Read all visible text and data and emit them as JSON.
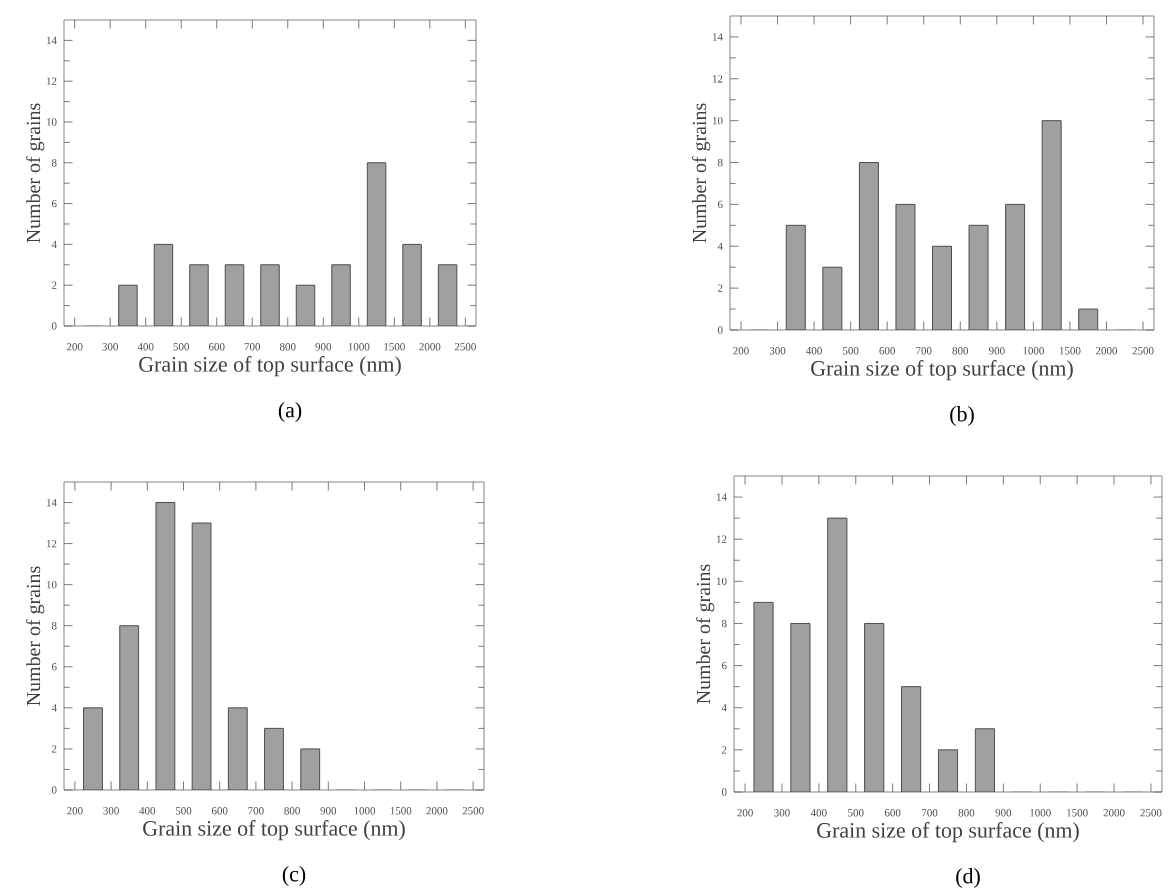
{
  "chart_data": [
    {
      "type": "bar",
      "xlabel": "Grain size of top surface (nm)",
      "ylabel": "Number of grains",
      "categories": [
        "200",
        "300",
        "400",
        "500",
        "600",
        "700",
        "800",
        "900",
        "1000",
        "1500",
        "2000",
        "2500"
      ],
      "values": [
        0,
        2,
        4,
        3,
        3,
        3,
        2,
        3,
        8,
        4,
        3,
        null
      ],
      "color": "#a0a0a0",
      "ylim": [
        0,
        15
      ],
      "yticks": [
        0,
        2,
        4,
        6,
        8,
        10,
        12,
        14
      ],
      "annotations": [
        "(a)"
      ]
    },
    {
      "type": "bar",
      "xlabel": "Grain size of top surface (nm)",
      "ylabel": "Number of grains",
      "categories": [
        "200",
        "300",
        "400",
        "500",
        "600",
        "700",
        "800",
        "900",
        "1000",
        "1500",
        "2000",
        "2500"
      ],
      "values": [
        0,
        5,
        3,
        8,
        6,
        4,
        5,
        6,
        10,
        1,
        0,
        null
      ],
      "color": "#a0a0a0",
      "ylim": [
        0,
        15
      ],
      "yticks": [
        0,
        2,
        4,
        6,
        8,
        10,
        12,
        14
      ],
      "annotations": [
        "(b)"
      ]
    },
    {
      "type": "bar",
      "xlabel": "Grain size of top surface (nm)",
      "ylabel": "Number of grains",
      "categories": [
        "200",
        "300",
        "400",
        "500",
        "600",
        "700",
        "800",
        "900",
        "1000",
        "1500",
        "2000",
        "2500"
      ],
      "values": [
        4,
        8,
        14,
        13,
        4,
        3,
        2,
        0,
        0,
        0,
        0,
        null
      ],
      "color": "#a0a0a0",
      "ylim": [
        0,
        15
      ],
      "yticks": [
        0,
        2,
        4,
        6,
        8,
        10,
        12,
        14
      ],
      "annotations": [
        "(c)"
      ]
    },
    {
      "type": "bar",
      "xlabel": "Grain size of top surface (nm)",
      "ylabel": "Number of grains",
      "categories": [
        "200",
        "300",
        "400",
        "500",
        "600",
        "700",
        "800",
        "900",
        "1000",
        "1500",
        "2000",
        "2500"
      ],
      "values": [
        9,
        8,
        13,
        8,
        5,
        2,
        3,
        0,
        0,
        0,
        0,
        null
      ],
      "color": "#a0a0a0",
      "ylim": [
        0,
        15
      ],
      "yticks": [
        0,
        2,
        4,
        6,
        8,
        10,
        12,
        14
      ],
      "annotations": [
        "(d)"
      ]
    }
  ]
}
